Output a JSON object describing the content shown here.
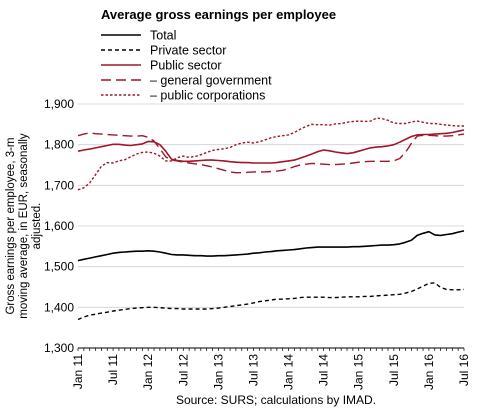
{
  "chart_data": {
    "type": "line",
    "title": "Average gross earnings per employee",
    "ylabel": "Gross earnings per employee, 3-m moving average, in EUR, seasonally adjusted.",
    "xlabel": "",
    "source": "Source: SURS; calculations by IMAD.",
    "ylim": [
      1300,
      1900
    ],
    "yticks": [
      1300,
      1400,
      1500,
      1600,
      1700,
      1800,
      1900
    ],
    "ytick_labels": [
      "1,300",
      "1,400",
      "1,500",
      "1,600",
      "1,700",
      "1,800",
      "1,900"
    ],
    "xlim": [
      0,
      66
    ],
    "xticks": [
      0,
      6,
      12,
      18,
      24,
      30,
      36,
      42,
      48,
      54,
      60,
      66
    ],
    "xtick_labels": [
      "Jan 11",
      "Jul 11",
      "Jan 12",
      "Jul 12",
      "Jan 13",
      "Jul 13",
      "Jan 14",
      "Jul 14",
      "Jan 15",
      "Jul 15",
      "Jan 16",
      "Jul 16"
    ],
    "grid": "horizontal",
    "legend_position": "top-left",
    "series": [
      {
        "name": "Total",
        "color": "#000000",
        "style": "solid",
        "values": [
          1515,
          1518,
          1521,
          1524,
          1527,
          1530,
          1533,
          1535,
          1536,
          1537,
          1538,
          1538,
          1539,
          1538,
          1536,
          1533,
          1530,
          1529,
          1529,
          1528,
          1527,
          1527,
          1526,
          1526,
          1527,
          1527,
          1528,
          1529,
          1530,
          1531,
          1533,
          1534,
          1536,
          1537,
          1539,
          1540,
          1541,
          1542,
          1544,
          1546,
          1547,
          1548,
          1548,
          1548,
          1548,
          1548,
          1548,
          1549,
          1549,
          1550,
          1551,
          1552,
          1553,
          1553,
          1554,
          1556,
          1560,
          1565,
          1577,
          1582,
          1586,
          1578,
          1577,
          1579,
          1581,
          1585,
          1588
        ]
      },
      {
        "name": "Private sector",
        "color": "#000000",
        "style": "dashed",
        "values": [
          1370,
          1376,
          1381,
          1383,
          1386,
          1388,
          1391,
          1393,
          1395,
          1397,
          1398,
          1399,
          1400,
          1400,
          1399,
          1398,
          1397,
          1397,
          1396,
          1396,
          1396,
          1396,
          1396,
          1397,
          1398,
          1400,
          1402,
          1404,
          1406,
          1408,
          1411,
          1414,
          1416,
          1418,
          1420,
          1420,
          1421,
          1422,
          1424,
          1425,
          1425,
          1425,
          1425,
          1424,
          1424,
          1425,
          1426,
          1426,
          1426,
          1427,
          1427,
          1428,
          1429,
          1430,
          1431,
          1432,
          1435,
          1439,
          1445,
          1452,
          1459,
          1460,
          1449,
          1444,
          1443,
          1443,
          1444
        ]
      },
      {
        "name": "Public sector",
        "color": "#a0162a",
        "style": "solid",
        "values": [
          1784,
          1787,
          1789,
          1792,
          1795,
          1798,
          1801,
          1801,
          1799,
          1798,
          1800,
          1802,
          1808,
          1807,
          1800,
          1784,
          1764,
          1761,
          1759,
          1759,
          1760,
          1761,
          1762,
          1762,
          1761,
          1760,
          1758,
          1757,
          1756,
          1756,
          1755,
          1755,
          1755,
          1755,
          1756,
          1758,
          1760,
          1762,
          1767,
          1772,
          1777,
          1783,
          1787,
          1785,
          1782,
          1780,
          1778,
          1780,
          1784,
          1788,
          1792,
          1794,
          1795,
          1797,
          1800,
          1806,
          1813,
          1820,
          1824,
          1825,
          1825,
          1826,
          1827,
          1828,
          1830,
          1833,
          1836
        ]
      },
      {
        "name": "– general government",
        "color": "#a0162a",
        "style": "longdash",
        "values": [
          1822,
          1826,
          1829,
          1827,
          1826,
          1825,
          1824,
          1823,
          1822,
          1821,
          1821,
          1822,
          1818,
          1809,
          1790,
          1770,
          1762,
          1760,
          1757,
          1755,
          1753,
          1751,
          1748,
          1745,
          1741,
          1737,
          1733,
          1731,
          1731,
          1732,
          1733,
          1733,
          1733,
          1734,
          1735,
          1737,
          1741,
          1746,
          1750,
          1752,
          1754,
          1753,
          1752,
          1751,
          1751,
          1752,
          1753,
          1755,
          1757,
          1758,
          1759,
          1759,
          1759,
          1759,
          1760,
          1766,
          1781,
          1803,
          1821,
          1823,
          1823,
          1822,
          1821,
          1821,
          1822,
          1824,
          1826
        ]
      },
      {
        "name": "– public corporations",
        "color": "#a0162a",
        "style": "dotted",
        "values": [
          1689,
          1694,
          1706,
          1726,
          1747,
          1756,
          1755,
          1760,
          1763,
          1770,
          1777,
          1781,
          1782,
          1779,
          1772,
          1760,
          1760,
          1768,
          1772,
          1769,
          1771,
          1775,
          1781,
          1786,
          1788,
          1790,
          1793,
          1800,
          1804,
          1806,
          1804,
          1807,
          1812,
          1817,
          1820,
          1822,
          1824,
          1830,
          1838,
          1845,
          1850,
          1849,
          1849,
          1848,
          1851,
          1852,
          1855,
          1857,
          1858,
          1857,
          1858,
          1865,
          1864,
          1860,
          1853,
          1852,
          1852,
          1856,
          1858,
          1855,
          1852,
          1852,
          1850,
          1848,
          1847,
          1846,
          1846
        ]
      }
    ]
  }
}
